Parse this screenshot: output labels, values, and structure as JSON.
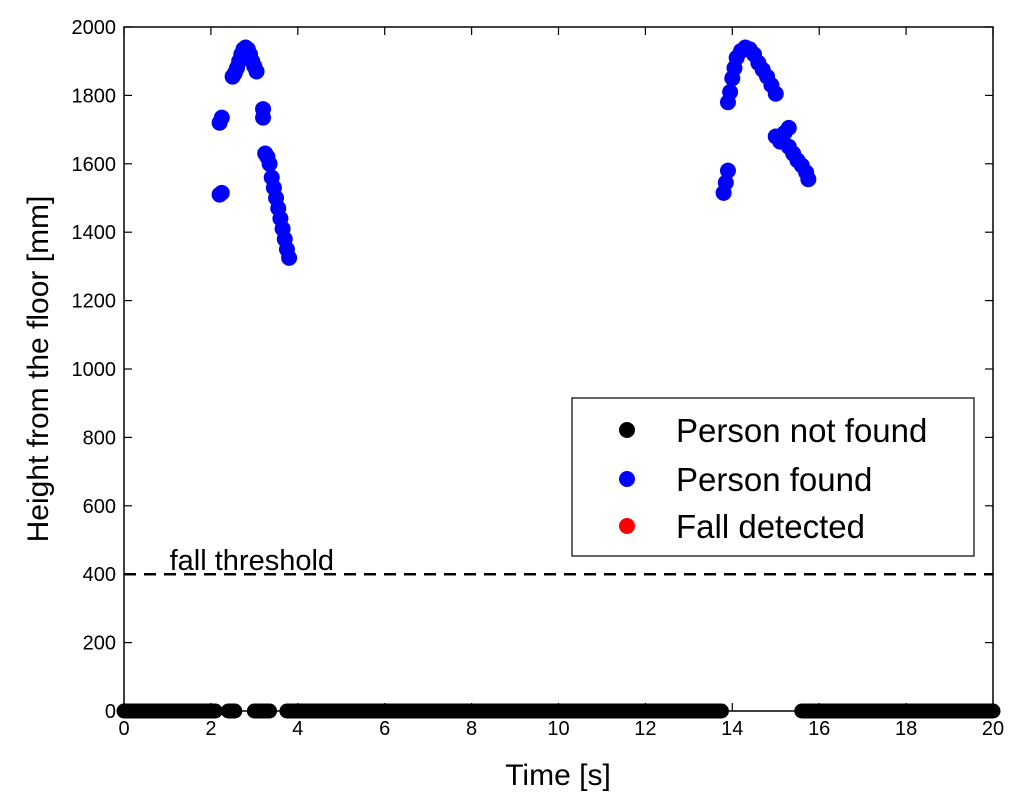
{
  "chart_data": {
    "type": "scatter",
    "title": "",
    "xlabel": "Time [s]",
    "ylabel": "Height from the floor [mm]",
    "xlim": [
      0,
      20
    ],
    "ylim": [
      0,
      2000
    ],
    "x_ticks": [
      "0",
      "2",
      "4",
      "6",
      "8",
      "10",
      "12",
      "14",
      "16",
      "18",
      "20"
    ],
    "y_ticks": [
      "0",
      "200",
      "400",
      "600",
      "800",
      "1000",
      "1200",
      "1400",
      "1600",
      "1800",
      "2000"
    ],
    "grid": false,
    "legend_position": "lower-right",
    "threshold": {
      "y": 400,
      "label": "fall threshold",
      "style": "dashed"
    },
    "series": [
      {
        "name": "Person not found",
        "color": "#000000",
        "segments": [
          [
            0.0,
            2.1
          ],
          [
            2.4,
            2.55
          ],
          [
            3.0,
            3.35
          ],
          [
            3.75,
            13.75
          ],
          [
            15.6,
            20.0
          ]
        ],
        "y": 0
      },
      {
        "name": "Person found",
        "color": "#0000ff",
        "points": [
          [
            2.2,
            1510
          ],
          [
            2.25,
            1515
          ],
          [
            2.2,
            1720
          ],
          [
            2.25,
            1735
          ],
          [
            2.5,
            1855
          ],
          [
            2.55,
            1865
          ],
          [
            2.6,
            1880
          ],
          [
            2.65,
            1900
          ],
          [
            2.7,
            1920
          ],
          [
            2.75,
            1935
          ],
          [
            2.8,
            1940
          ],
          [
            2.85,
            1935
          ],
          [
            2.9,
            1920
          ],
          [
            2.95,
            1900
          ],
          [
            3.0,
            1885
          ],
          [
            3.05,
            1870
          ],
          [
            3.2,
            1760
          ],
          [
            3.2,
            1735
          ],
          [
            3.25,
            1630
          ],
          [
            3.3,
            1620
          ],
          [
            3.35,
            1600
          ],
          [
            3.4,
            1560
          ],
          [
            3.45,
            1530
          ],
          [
            3.5,
            1500
          ],
          [
            3.55,
            1470
          ],
          [
            3.6,
            1440
          ],
          [
            3.65,
            1410
          ],
          [
            3.7,
            1380
          ],
          [
            3.75,
            1350
          ],
          [
            3.8,
            1325
          ],
          [
            13.8,
            1515
          ],
          [
            13.85,
            1545
          ],
          [
            13.9,
            1580
          ],
          [
            13.9,
            1780
          ],
          [
            13.95,
            1810
          ],
          [
            14.0,
            1850
          ],
          [
            14.05,
            1880
          ],
          [
            14.1,
            1910
          ],
          [
            14.2,
            1930
          ],
          [
            14.3,
            1940
          ],
          [
            14.4,
            1935
          ],
          [
            14.5,
            1920
          ],
          [
            14.6,
            1895
          ],
          [
            14.7,
            1875
          ],
          [
            14.8,
            1855
          ],
          [
            14.9,
            1830
          ],
          [
            15.0,
            1805
          ],
          [
            15.0,
            1680
          ],
          [
            15.1,
            1665
          ],
          [
            15.2,
            1690
          ],
          [
            15.3,
            1705
          ],
          [
            15.3,
            1650
          ],
          [
            15.4,
            1630
          ],
          [
            15.5,
            1610
          ],
          [
            15.6,
            1595
          ],
          [
            15.7,
            1575
          ],
          [
            15.75,
            1555
          ]
        ]
      },
      {
        "name": "Fall detected",
        "color": "#ff0000",
        "points": []
      }
    ]
  }
}
